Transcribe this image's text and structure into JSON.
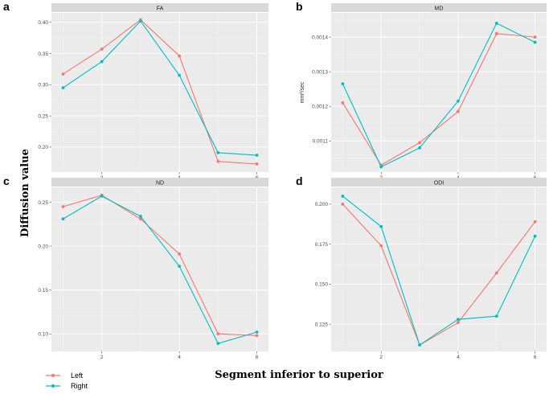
{
  "figure": {
    "xlabel": "Segment inferior to superior",
    "ylabel": "Diffusion value"
  },
  "legend": {
    "items": [
      {
        "label": "Left",
        "color": "#F8766D"
      },
      {
        "label": "Right",
        "color": "#00BFC4"
      }
    ]
  },
  "chart_data": [
    {
      "type": "line",
      "panel": "a",
      "title": "FA",
      "ylabel": "",
      "x": [
        1,
        2,
        3,
        4,
        5,
        6
      ],
      "xticks": [
        2,
        4,
        6
      ],
      "xlim": [
        0.7,
        6.3
      ],
      "yticks": [
        0.2,
        0.25,
        0.3,
        0.35,
        0.4
      ],
      "ytick_labels": [
        "0.20",
        "0.25",
        "0.30",
        "0.35",
        "0.40"
      ],
      "ylim": [
        0.16,
        0.415
      ],
      "series": [
        {
          "name": "Left",
          "color": "#F8766D",
          "values": [
            0.317,
            0.357,
            0.404,
            0.346,
            0.177,
            0.173
          ]
        },
        {
          "name": "Right",
          "color": "#00BFC4",
          "values": [
            0.295,
            0.337,
            0.402,
            0.315,
            0.191,
            0.187
          ]
        }
      ]
    },
    {
      "type": "line",
      "panel": "b",
      "title": "MD",
      "ylabel": "mm²/sec",
      "x": [
        1,
        2,
        3,
        4,
        5,
        6
      ],
      "xticks": [
        2,
        4,
        6
      ],
      "xlim": [
        0.7,
        6.3
      ],
      "yticks": [
        0.0011,
        0.0012,
        0.0013,
        0.0014
      ],
      "ytick_labels": [
        "0.0011",
        "0.0012",
        "0.0013",
        "0.0014"
      ],
      "ylim": [
        0.00101,
        0.00147
      ],
      "series": [
        {
          "name": "Left",
          "color": "#F8766D",
          "values": [
            0.00121,
            0.00103,
            0.001095,
            0.001185,
            0.00141,
            0.0014
          ]
        },
        {
          "name": "Right",
          "color": "#00BFC4",
          "values": [
            0.001265,
            0.001025,
            0.00108,
            0.001215,
            0.00144,
            0.001385
          ]
        }
      ]
    },
    {
      "type": "line",
      "panel": "c",
      "title": "ND",
      "ylabel": "",
      "x": [
        1,
        2,
        3,
        4,
        5,
        6
      ],
      "xticks": [
        2,
        4,
        6
      ],
      "xlim": [
        0.7,
        6.3
      ],
      "yticks": [
        0.1,
        0.15,
        0.2,
        0.25
      ],
      "ytick_labels": [
        "0.10",
        "0.15",
        "0.20",
        "0.25"
      ],
      "ylim": [
        0.08,
        0.267
      ],
      "series": [
        {
          "name": "Left",
          "color": "#F8766D",
          "values": [
            0.245,
            0.258,
            0.231,
            0.191,
            0.1,
            0.098
          ]
        },
        {
          "name": "Right",
          "color": "#00BFC4",
          "values": [
            0.231,
            0.257,
            0.234,
            0.177,
            0.089,
            0.102
          ]
        }
      ]
    },
    {
      "type": "line",
      "panel": "d",
      "title": "ODI",
      "ylabel": "",
      "x": [
        1,
        2,
        3,
        4,
        5,
        6
      ],
      "xticks": [
        2,
        4,
        6
      ],
      "xlim": [
        0.7,
        6.3
      ],
      "yticks": [
        0.125,
        0.15,
        0.175,
        0.2
      ],
      "ytick_labels": [
        "0.125",
        "0.150",
        "0.175",
        "0.200"
      ],
      "ylim": [
        0.108,
        0.2105
      ],
      "series": [
        {
          "name": "Left",
          "color": "#F8766D",
          "values": [
            0.2,
            0.174,
            0.112,
            0.126,
            0.157,
            0.189
          ]
        },
        {
          "name": "Right",
          "color": "#00BFC4",
          "values": [
            0.205,
            0.186,
            0.112,
            0.128,
            0.13,
            0.18
          ]
        }
      ]
    }
  ]
}
